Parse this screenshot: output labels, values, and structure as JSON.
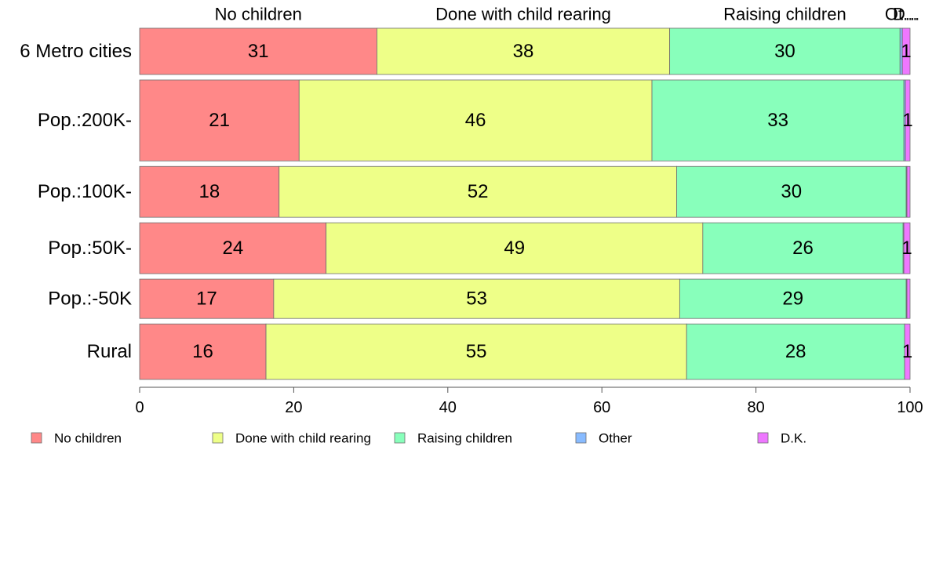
{
  "chart_data": {
    "type": "bar",
    "orientation": "horizontal",
    "stacked": true,
    "categories": [
      "6 Metro cities",
      "Pop.:200K-",
      "Pop.:100K-",
      "Pop.:50K-",
      "Pop.:-50K",
      "Rural"
    ],
    "series": [
      {
        "name": "No children",
        "color": "#ff8888",
        "values": [
          30.8,
          20.7,
          18.1,
          24.2,
          17.4,
          16.4
        ]
      },
      {
        "name": "Done with child rearing",
        "color": "#eeff88",
        "values": [
          38.0,
          45.8,
          51.6,
          48.9,
          52.7,
          54.6
        ]
      },
      {
        "name": "Raising children",
        "color": "#88ffbb",
        "values": [
          29.9,
          32.7,
          29.8,
          26.0,
          29.4,
          28.3
        ]
      },
      {
        "name": "Other",
        "color": "#88bbff",
        "values": [
          0.3,
          0.2,
          0.1,
          0.1,
          0.1,
          0.0
        ]
      },
      {
        "name": "D.K.",
        "color": "#ee77ff",
        "values": [
          1.0,
          0.6,
          0.4,
          0.8,
          0.4,
          0.7
        ]
      }
    ],
    "data_labels": [
      [
        "31",
        "38",
        "30",
        "",
        "1"
      ],
      [
        "21",
        "46",
        "33",
        "",
        "1"
      ],
      [
        "18",
        "52",
        "30",
        "",
        ""
      ],
      [
        "24",
        "49",
        "26",
        "",
        "1"
      ],
      [
        "17",
        "53",
        "29",
        "",
        ""
      ],
      [
        "16",
        "55",
        "28",
        "",
        "1"
      ]
    ],
    "top_labels": [
      "No children",
      "Done with child rearing",
      "Raising children",
      "Ot...",
      "D..."
    ],
    "xlim": [
      0,
      100
    ],
    "xticks": [
      0,
      20,
      40,
      60,
      80,
      100
    ],
    "tick_labels": [
      "0",
      "20",
      "40",
      "60",
      "80",
      "100"
    ],
    "grid": false,
    "legend_position": "bottom",
    "title": "",
    "xlabel": "",
    "ylabel": ""
  }
}
